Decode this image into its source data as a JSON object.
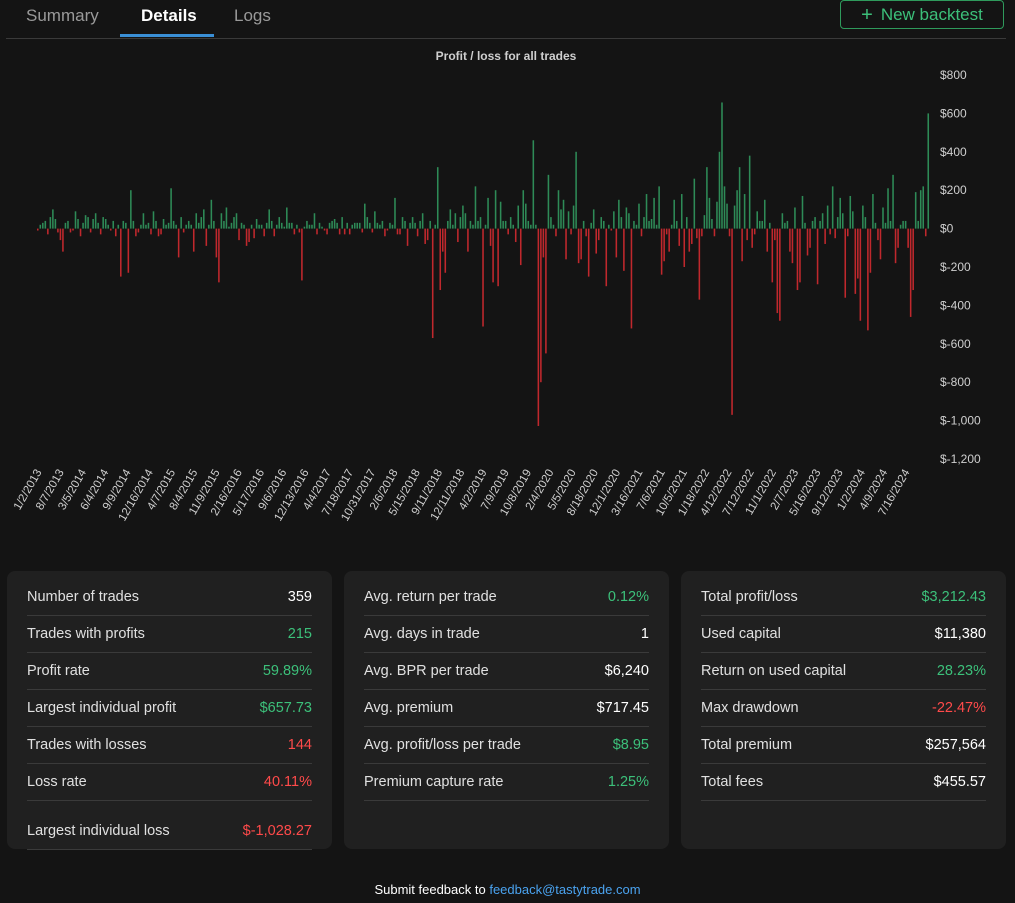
{
  "tabs": [
    {
      "label": "Summary"
    },
    {
      "label": "Details"
    },
    {
      "label": "Logs"
    }
  ],
  "new_backtest_label": "New backtest",
  "chart_data": {
    "type": "bar",
    "title": "Profit / loss for all trades",
    "ylim": [
      -1200,
      800
    ],
    "yticks": [
      800,
      600,
      400,
      200,
      0,
      -200,
      -400,
      -600,
      -800,
      -1000,
      -1200
    ],
    "ytick_labels": [
      "$800",
      "$600",
      "$400",
      "$200",
      "$0",
      "$-200",
      "$-400",
      "$-600",
      "$-800",
      "$-1,000",
      "$-1,200"
    ],
    "xtick_labels": [
      "1/2/2013",
      "8/7/2013",
      "3/5/2014",
      "6/4/2014",
      "9/9/2014",
      "12/16/2014",
      "4/7/2015",
      "8/4/2015",
      "11/9/2015",
      "2/16/2016",
      "5/17/2016",
      "9/6/2016",
      "12/13/2016",
      "4/4/2017",
      "7/18/2017",
      "10/31/2017",
      "2/6/2018",
      "5/15/2018",
      "9/11/2018",
      "12/11/2018",
      "4/2/2019",
      "7/9/2019",
      "10/8/2019",
      "2/4/2020",
      "5/5/2020",
      "8/18/2020",
      "12/1/2020",
      "3/16/2021",
      "7/6/2021",
      "10/5/2021",
      "1/18/2022",
      "4/12/2022",
      "7/12/2022",
      "11/1/2022",
      "2/7/2023",
      "5/16/2023",
      "9/12/2023",
      "1/2/2024",
      "4/9/2024",
      "7/16/2024"
    ],
    "values": [
      -10,
      20,
      30,
      40,
      -30,
      60,
      100,
      50,
      -20,
      -60,
      -120,
      30,
      40,
      -20,
      -10,
      90,
      50,
      -40,
      30,
      70,
      60,
      -20,
      50,
      80,
      30,
      -30,
      60,
      50,
      20,
      -10,
      40,
      -40,
      20,
      -250,
      40,
      30,
      -230,
      200,
      40,
      -40,
      -20,
      20,
      80,
      20,
      30,
      -30,
      90,
      40,
      -40,
      -30,
      50,
      20,
      30,
      210,
      40,
      20,
      -150,
      60,
      -20,
      20,
      40,
      20,
      -120,
      80,
      30,
      60,
      100,
      -90,
      20,
      150,
      40,
      -150,
      -280,
      80,
      40,
      110,
      10,
      30,
      60,
      80,
      -60,
      30,
      20,
      -90,
      -70,
      20,
      -50,
      50,
      20,
      20,
      -40,
      30,
      100,
      40,
      -40,
      20,
      60,
      30,
      10,
      110,
      30,
      30,
      -30,
      20,
      -20,
      -270,
      10,
      40,
      20,
      20,
      80,
      -30,
      30,
      10,
      -10,
      -30,
      30,
      40,
      50,
      30,
      -30,
      60,
      -30,
      30,
      -30,
      20,
      30,
      30,
      30,
      -20,
      130,
      60,
      30,
      -20,
      90,
      30,
      20,
      40,
      -40,
      -10,
      30,
      20,
      160,
      -30,
      -30,
      60,
      40,
      -90,
      30,
      60,
      30,
      -40,
      40,
      80,
      -80,
      -60,
      40,
      -570,
      20,
      320,
      -320,
      -120,
      -230,
      40,
      100,
      20,
      80,
      -70,
      60,
      120,
      80,
      -120,
      40,
      20,
      220,
      40,
      60,
      -510,
      20,
      160,
      -90,
      -280,
      200,
      -300,
      140,
      40,
      40,
      -30,
      60,
      20,
      -70,
      120,
      -190,
      200,
      130,
      40,
      20,
      460,
      20,
      -1028,
      -800,
      -150,
      -650,
      280,
      60,
      20,
      -40,
      200,
      100,
      150,
      -160,
      90,
      -30,
      120,
      400,
      -180,
      -160,
      40,
      -40,
      -250,
      30,
      100,
      -130,
      -60,
      60,
      40,
      -300,
      20,
      -10,
      90,
      -150,
      150,
      60,
      -220,
      110,
      80,
      -520,
      40,
      20,
      130,
      -40,
      60,
      180,
      40,
      50,
      160,
      20,
      220,
      -240,
      -170,
      -30,
      -120,
      20,
      150,
      40,
      -90,
      180,
      -200,
      60,
      -120,
      -80,
      260,
      -50,
      -370,
      -40,
      70,
      320,
      160,
      50,
      -40,
      140,
      400,
      657,
      220,
      130,
      -40,
      -970,
      120,
      200,
      320,
      -170,
      180,
      -60,
      380,
      -100,
      -30,
      90,
      40,
      40,
      150,
      -120,
      30,
      -280,
      -60,
      -440,
      -480,
      80,
      30,
      40,
      -120,
      -180,
      110,
      -320,
      -280,
      170,
      30,
      -140,
      -100,
      40,
      60,
      -290,
      40,
      80,
      -80,
      120,
      -30,
      220,
      -50,
      60,
      160,
      80,
      -360,
      -40,
      170,
      90,
      -340,
      -260,
      -480,
      120,
      60,
      -530,
      -230,
      180,
      30,
      -60,
      -160,
      110,
      30,
      210,
      40,
      280,
      -180,
      -100,
      20,
      40,
      40,
      -100,
      -460,
      -320,
      190,
      40,
      200,
      220,
      -40,
      600
    ],
    "colors": {
      "positive": "#2e8b57",
      "negative": "#c0282d"
    }
  },
  "stats": {
    "card1": [
      {
        "label": "Number of trades",
        "value": "359",
        "tone": "neutral"
      },
      {
        "label": "Trades with profits",
        "value": "215",
        "tone": "pos"
      },
      {
        "label": "Profit rate",
        "value": "59.89%",
        "tone": "pos"
      },
      {
        "label": "Largest individual profit",
        "value": "$657.73",
        "tone": "pos"
      },
      {
        "label": "Trades with losses",
        "value": "144",
        "tone": "neg"
      },
      {
        "label": "Loss rate",
        "value": "40.11%",
        "tone": "neg"
      },
      {
        "label": "Largest individual loss",
        "value": "$-1,028.27",
        "tone": "neg"
      }
    ],
    "card2": [
      {
        "label": "Avg. return per trade",
        "value": "0.12%",
        "tone": "pos"
      },
      {
        "label": "Avg. days in trade",
        "value": "1",
        "tone": "neutral"
      },
      {
        "label": "Avg. BPR per trade",
        "value": "$6,240",
        "tone": "neutral"
      },
      {
        "label": "Avg. premium",
        "value": "$717.45",
        "tone": "neutral"
      },
      {
        "label": "Avg. profit/loss per trade",
        "value": "$8.95",
        "tone": "pos"
      },
      {
        "label": "Premium capture rate",
        "value": "1.25%",
        "tone": "pos"
      }
    ],
    "card3": [
      {
        "label": "Total profit/loss",
        "value": "$3,212.43",
        "tone": "pos"
      },
      {
        "label": "Used capital",
        "value": "$11,380",
        "tone": "neutral"
      },
      {
        "label": "Return on used capital",
        "value": "28.23%",
        "tone": "pos"
      },
      {
        "label": "Max drawdown",
        "value": "-22.47%",
        "tone": "neg"
      },
      {
        "label": "Total premium",
        "value": "$257,564",
        "tone": "neutral"
      },
      {
        "label": "Total fees",
        "value": "$455.57",
        "tone": "neutral"
      }
    ]
  },
  "footer": {
    "text": "Submit feedback to ",
    "email": "feedback@tastytrade.com"
  }
}
